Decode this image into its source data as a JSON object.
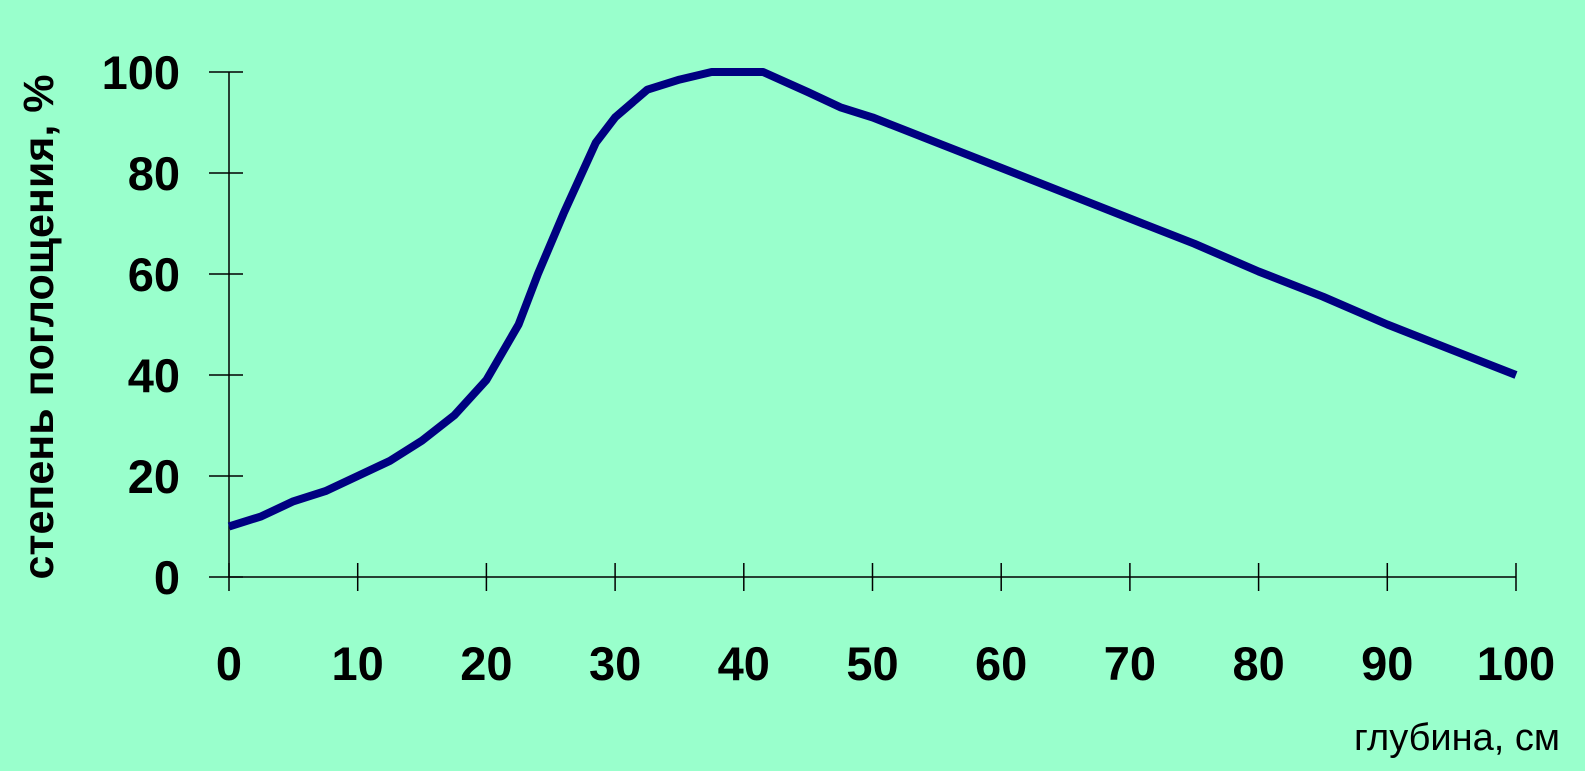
{
  "chart_data": {
    "type": "line",
    "title": "",
    "xlabel": "глубина, см",
    "ylabel": "степень поглощения, %",
    "xlim": [
      0,
      100
    ],
    "ylim": [
      0,
      100
    ],
    "x_ticks": [
      "0",
      "10",
      "20",
      "30",
      "40",
      "50",
      "60",
      "70",
      "80",
      "90",
      "100"
    ],
    "y_ticks": [
      "0",
      "20",
      "40",
      "60",
      "80",
      "100"
    ],
    "grid": false,
    "legend": "none",
    "series": [
      {
        "line_color": "#000080",
        "x": [
          0,
          2.5,
          5,
          7.5,
          10,
          12.5,
          15,
          17.5,
          20,
          22.5,
          24,
          26,
          28.5,
          30,
          32.5,
          35,
          37.5,
          40,
          41.5,
          45,
          47.5,
          50,
          55,
          60,
          65,
          70,
          75,
          80,
          85,
          90,
          95,
          100
        ],
        "y": [
          10,
          12,
          15,
          17,
          20,
          23,
          27,
          32,
          39,
          50,
          60,
          72,
          86,
          91,
          96.5,
          98.5,
          100,
          100,
          100,
          96,
          93,
          91,
          86,
          81,
          76,
          71,
          66,
          60.5,
          55.5,
          50,
          45,
          40
        ]
      }
    ]
  }
}
